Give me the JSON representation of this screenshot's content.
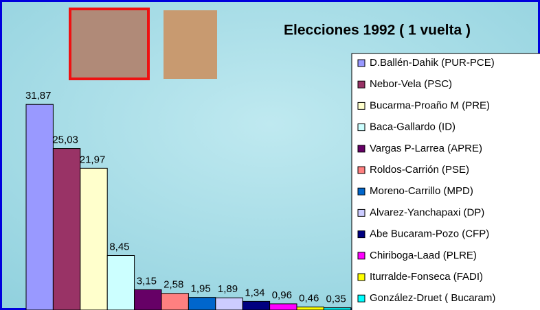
{
  "chart_data": {
    "type": "bar",
    "title": "Elecciones 1992 ( 1 vuelta )",
    "categories": [
      "D.Ballén-Dahik (PUR-PCE)",
      "Nebor-Vela (PSC)",
      "Bucarma-Proaño M (PRE)",
      "Baca-Gallardo (ID)",
      "Vargas P-Larrea (APRE)",
      "Roldos-Carrión (PSE)",
      "Moreno-Carrillo (MPD)",
      "Alvarez-Yanchapaxi (DP)",
      "Abe Bucaram-Pozo (CFP)",
      "Chiriboga-Laad (PLRE)",
      "Iturralde-Fonseca (FADI)",
      "González-Druet ( Bucaram)"
    ],
    "values": [
      31.87,
      25.03,
      21.97,
      8.45,
      3.15,
      2.58,
      1.95,
      1.89,
      1.34,
      0.96,
      0.46,
      0.35
    ],
    "value_labels": [
      "31,87",
      "25,03",
      "21,97",
      "8,45",
      "3,15",
      "2,58",
      "1,95",
      "1,89",
      "1,34",
      "0,96",
      "0,46",
      "0,35"
    ],
    "colors": [
      "#9999ff",
      "#993366",
      "#ffffcc",
      "#ccffff",
      "#660066",
      "#ff8080",
      "#0066cc",
      "#ccccff",
      "#000080",
      "#ff00ff",
      "#ffff00",
      "#00ffff"
    ],
    "ylim": [
      0,
      32
    ],
    "legend": "right"
  }
}
